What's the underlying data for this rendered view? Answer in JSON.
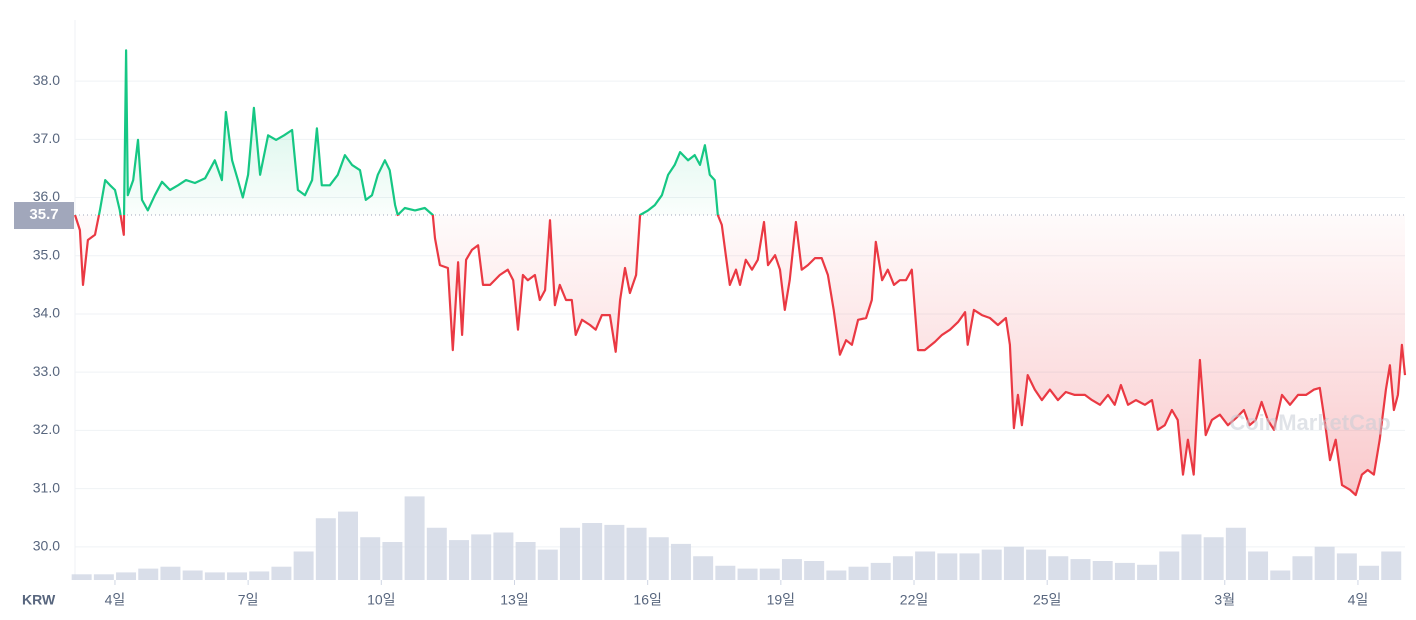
{
  "chart_data": {
    "type": "line",
    "currency": "KRW",
    "watermark": "CoinMarketCap",
    "reference": 35.7,
    "up_color": "#16c784",
    "down_color": "#ea3943",
    "grid": true,
    "ylim": [
      29.43,
      39.05
    ],
    "yticks": [
      {
        "value": 30,
        "label": "30.0"
      },
      {
        "value": 31,
        "label": "31.0"
      },
      {
        "value": 32,
        "label": "32.0"
      },
      {
        "value": 33,
        "label": "33.0"
      },
      {
        "value": 34,
        "label": "34.0"
      },
      {
        "value": 35,
        "label": "35.0"
      },
      {
        "value": 36,
        "label": "36.0"
      },
      {
        "value": 37,
        "label": "37.0"
      },
      {
        "value": 38,
        "label": "38.0"
      }
    ],
    "xlim": [
      3.1,
      33.06
    ],
    "xticks": [
      {
        "value": 4,
        "label": "4일"
      },
      {
        "value": 7,
        "label": "7일"
      },
      {
        "value": 10,
        "label": "10일"
      },
      {
        "value": 13,
        "label": "13일"
      },
      {
        "value": 16,
        "label": "16일"
      },
      {
        "value": 19,
        "label": "19일"
      },
      {
        "value": 22,
        "label": "22일"
      },
      {
        "value": 25,
        "label": "25일"
      },
      {
        "value": 29,
        "label": "3월"
      },
      {
        "value": 32,
        "label": "4일"
      }
    ],
    "x": [
      3.1,
      3.21,
      3.28,
      3.39,
      3.55,
      3.66,
      3.78,
      3.89,
      4.0,
      4.11,
      4.2,
      4.25,
      4.29,
      4.41,
      4.52,
      4.61,
      4.74,
      4.9,
      5.06,
      5.24,
      5.42,
      5.6,
      5.8,
      6.03,
      6.25,
      6.41,
      6.5,
      6.64,
      6.77,
      6.88,
      7.0,
      7.13,
      7.27,
      7.45,
      7.63,
      7.81,
      7.99,
      8.12,
      8.28,
      8.44,
      8.55,
      8.66,
      8.84,
      9.02,
      9.18,
      9.34,
      9.52,
      9.65,
      9.79,
      9.92,
      10.08,
      10.19,
      10.31,
      10.37,
      10.53,
      10.76,
      10.98,
      11.16,
      11.21,
      11.32,
      11.5,
      11.61,
      11.73,
      11.82,
      11.91,
      12.04,
      12.18,
      12.29,
      12.45,
      12.67,
      12.85,
      12.97,
      13.08,
      13.19,
      13.3,
      13.46,
      13.57,
      13.69,
      13.8,
      13.91,
      14.02,
      14.16,
      14.29,
      14.38,
      14.52,
      14.7,
      14.83,
      14.97,
      15.15,
      15.28,
      15.38,
      15.49,
      15.6,
      15.74,
      15.83,
      16.01,
      16.16,
      16.32,
      16.46,
      16.61,
      16.73,
      16.91,
      17.06,
      17.18,
      17.29,
      17.4,
      17.51,
      17.58,
      17.67,
      17.76,
      17.85,
      17.99,
      18.08,
      18.21,
      18.35,
      18.48,
      18.62,
      18.71,
      18.87,
      18.98,
      19.09,
      19.2,
      19.34,
      19.47,
      19.61,
      19.77,
      19.92,
      20.06,
      20.19,
      20.33,
      20.47,
      20.6,
      20.74,
      20.92,
      21.05,
      21.14,
      21.28,
      21.41,
      21.55,
      21.68,
      21.82,
      21.95,
      22.09,
      22.24,
      22.47,
      22.63,
      22.81,
      22.99,
      23.15,
      23.21,
      23.35,
      23.53,
      23.71,
      23.89,
      24.07,
      24.16,
      24.25,
      24.34,
      24.43,
      24.56,
      24.72,
      24.88,
      25.06,
      25.24,
      25.42,
      25.62,
      25.85,
      26.01,
      26.19,
      26.37,
      26.52,
      26.66,
      26.82,
      27.0,
      27.2,
      27.36,
      27.49,
      27.65,
      27.81,
      27.94,
      28.06,
      28.17,
      28.3,
      28.44,
      28.57,
      28.71,
      28.89,
      29.07,
      29.25,
      29.43,
      29.56,
      29.7,
      29.83,
      29.97,
      30.11,
      30.29,
      30.47,
      30.65,
      30.83,
      31.01,
      31.14,
      31.25,
      31.37,
      31.5,
      31.64,
      31.82,
      31.95,
      32.09,
      32.22,
      32.36,
      32.49,
      32.63,
      32.72,
      32.81,
      32.9,
      32.99,
      33.06
    ],
    "values": [
      35.7,
      35.44,
      34.5,
      35.27,
      35.36,
      35.78,
      36.3,
      36.21,
      36.13,
      35.78,
      35.36,
      38.53,
      36.04,
      36.3,
      36.99,
      35.96,
      35.78,
      36.04,
      36.27,
      36.13,
      36.21,
      36.3,
      36.25,
      36.33,
      36.64,
      36.3,
      37.47,
      36.64,
      36.3,
      36.0,
      36.39,
      37.54,
      36.39,
      37.07,
      36.99,
      37.07,
      37.16,
      36.13,
      36.04,
      36.3,
      37.19,
      36.21,
      36.21,
      36.39,
      36.73,
      36.56,
      36.47,
      35.96,
      36.04,
      36.39,
      36.64,
      36.47,
      35.87,
      35.7,
      35.82,
      35.78,
      35.82,
      35.7,
      35.3,
      34.84,
      34.79,
      33.38,
      34.89,
      33.64,
      34.93,
      35.1,
      35.18,
      34.5,
      34.5,
      34.67,
      34.76,
      34.58,
      33.73,
      34.67,
      34.58,
      34.67,
      34.24,
      34.41,
      35.61,
      34.15,
      34.5,
      34.24,
      34.24,
      33.64,
      33.9,
      33.81,
      33.73,
      33.98,
      33.98,
      33.35,
      34.24,
      34.79,
      34.36,
      34.67,
      35.7,
      35.78,
      35.87,
      36.04,
      36.39,
      36.56,
      36.78,
      36.64,
      36.73,
      36.56,
      36.9,
      36.39,
      36.3,
      35.7,
      35.53,
      35.01,
      34.5,
      34.76,
      34.5,
      34.93,
      34.76,
      34.93,
      35.58,
      34.84,
      35.01,
      34.76,
      34.07,
      34.58,
      35.58,
      34.76,
      34.84,
      34.96,
      34.96,
      34.67,
      34.07,
      33.3,
      33.55,
      33.47,
      33.9,
      33.93,
      34.24,
      35.24,
      34.58,
      34.76,
      34.5,
      34.58,
      34.58,
      34.76,
      33.38,
      33.38,
      33.52,
      33.64,
      33.73,
      33.86,
      34.03,
      33.47,
      34.07,
      33.98,
      33.93,
      33.81,
      33.93,
      33.47,
      32.04,
      32.61,
      32.09,
      32.95,
      32.7,
      32.52,
      32.7,
      32.52,
      32.66,
      32.61,
      32.61,
      32.52,
      32.44,
      32.61,
      32.44,
      32.78,
      32.44,
      32.52,
      32.44,
      32.52,
      32.01,
      32.09,
      32.35,
      32.18,
      31.24,
      31.84,
      31.24,
      33.21,
      31.92,
      32.18,
      32.27,
      32.09,
      32.21,
      32.35,
      32.09,
      32.18,
      32.49,
      32.18,
      32.01,
      32.61,
      32.44,
      32.61,
      32.61,
      32.7,
      32.73,
      32.18,
      31.49,
      31.84,
      31.06,
      30.98,
      30.89,
      31.24,
      31.32,
      31.24,
      31.84,
      32.7,
      33.12,
      32.35,
      32.61,
      33.47,
      32.95
    ],
    "volume": {
      "color": "#cfd6e4",
      "y2lim": [
        0,
        100
      ],
      "x": [
        3.25,
        3.75,
        4.25,
        4.75,
        5.25,
        5.75,
        6.25,
        6.75,
        7.25,
        7.75,
        8.25,
        8.75,
        9.25,
        9.75,
        10.25,
        10.75,
        11.25,
        11.75,
        12.25,
        12.75,
        13.25,
        13.75,
        14.25,
        14.75,
        15.25,
        15.75,
        16.25,
        16.75,
        17.25,
        17.75,
        18.25,
        18.75,
        19.25,
        19.75,
        20.25,
        20.75,
        21.25,
        21.75,
        22.25,
        22.75,
        23.25,
        23.75,
        24.25,
        24.75,
        25.25,
        25.75,
        26.25,
        26.75,
        27.25,
        27.75,
        28.25,
        28.75,
        29.25,
        29.75,
        30.25,
        30.75,
        31.25,
        31.75,
        32.25,
        32.75
      ],
      "values": [
        6,
        6,
        8,
        12,
        14,
        10,
        8,
        8,
        9,
        14,
        30,
        65,
        72,
        45,
        40,
        88,
        55,
        42,
        48,
        50,
        40,
        32,
        55,
        60,
        58,
        55,
        45,
        38,
        25,
        15,
        12,
        12,
        22,
        20,
        10,
        14,
        18,
        25,
        30,
        28,
        28,
        32,
        35,
        32,
        25,
        22,
        20,
        18,
        16,
        30,
        48,
        45,
        55,
        30,
        10,
        25,
        35,
        28,
        15,
        30
      ]
    }
  }
}
